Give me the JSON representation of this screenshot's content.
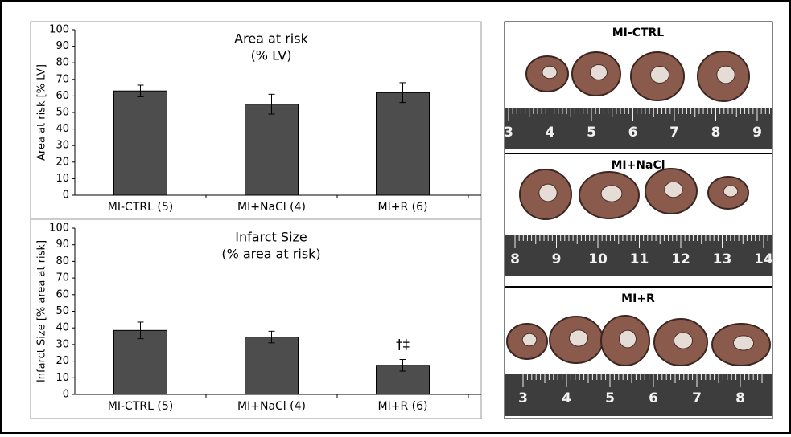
{
  "chart_data": [
    {
      "type": "bar",
      "title": "Area at risk",
      "subtitle": "(% LV)",
      "y_label": "Area at risk [% LV]",
      "categories": [
        "MI-CTRL (5)",
        "MI+NaCl (4)",
        "MI+R (6)"
      ],
      "values": [
        63,
        55,
        62
      ],
      "errors": [
        3.5,
        6,
        6
      ],
      "color": "#4d4d4d",
      "ylim": [
        0,
        100
      ],
      "yticks": [
        0,
        10,
        20,
        30,
        40,
        50,
        60,
        70,
        80,
        90,
        100
      ]
    },
    {
      "type": "bar",
      "title": "Infarct Size",
      "subtitle": "(% area at risk)",
      "y_label": "Infarct Size [% area at risk]",
      "categories": [
        "MI-CTRL (5)",
        "MI+NaCl (4)",
        "MI+R (6)"
      ],
      "values": [
        38.5,
        34.5,
        17.5
      ],
      "errors": [
        5,
        3.5,
        3.5
      ],
      "color": "#4d4d4d",
      "ylim": [
        0,
        100
      ],
      "yticks": [
        0,
        10,
        20,
        30,
        40,
        50,
        60,
        70,
        80,
        90,
        100
      ],
      "annotations": [
        {
          "text": "†‡",
          "category": "MI+R (6)"
        }
      ]
    }
  ],
  "photos": [
    {
      "label": "MI-CTRL",
      "ruler": [
        3,
        4,
        5,
        6,
        7,
        8,
        9
      ]
    },
    {
      "label": "MI+NaCl",
      "ruler": [
        8,
        9,
        10,
        11,
        12,
        13,
        14
      ]
    },
    {
      "label": "MI+R",
      "ruler": [
        3,
        4,
        5,
        6,
        7,
        8
      ]
    }
  ]
}
